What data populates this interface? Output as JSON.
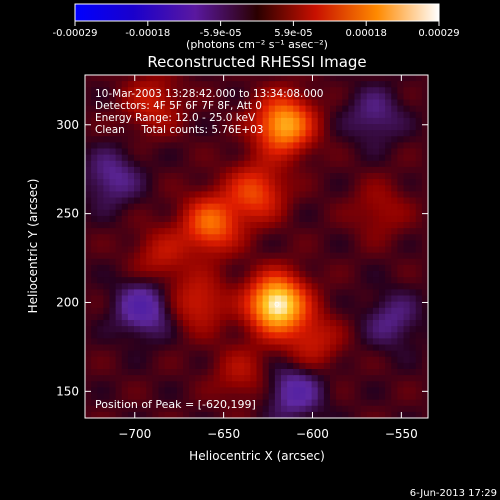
{
  "chart_data": {
    "type": "heatmap",
    "title": "Reconstructed RHESSI Image",
    "xlabel": "Heliocentric X (arcsec)",
    "ylabel": "Heliocentric Y (arcsec)",
    "xlim": [
      -728,
      -535
    ],
    "ylim": [
      135,
      328
    ],
    "x_ticks": [
      -700,
      -650,
      -600,
      -550
    ],
    "y_ticks": [
      150,
      200,
      250,
      300
    ],
    "colorbar": {
      "ticks": [
        "-0.00029",
        "-0.00018",
        "-5.9e-05",
        "5.9e-05",
        "0.00018",
        "0.00029"
      ],
      "unit_label": "(photons cm⁻² s⁻¹ asec⁻²)",
      "range": [
        -0.00029,
        0.00029
      ]
    },
    "annotations": [
      "10-Mar-2003 13:28:42.000 to 13:34:08.000",
      "Detectors: 4F 5F 6F 7F 8F, Att 0",
      "Energy Range: 12.0 - 25.0 keV",
      "Clean     Total counts: 5.76E+03"
    ],
    "peak_label": "Position of Peak = [-620,199]",
    "peak": {
      "x": -620,
      "y": 199
    },
    "sources": [
      {
        "x": -620,
        "y": 199,
        "value": 0.00029
      },
      {
        "x": -616,
        "y": 300,
        "value": 0.00022
      },
      {
        "x": -657,
        "y": 244,
        "value": 0.00016
      },
      {
        "x": -632,
        "y": 262,
        "value": 0.00013
      },
      {
        "x": -664,
        "y": 200,
        "value": 9e-05
      },
      {
        "x": -690,
        "y": 312,
        "value": 8e-05
      },
      {
        "x": -600,
        "y": 178,
        "value": 8e-05
      },
      {
        "x": -685,
        "y": 226,
        "value": 7e-05
      },
      {
        "x": -640,
        "y": 160,
        "value": 6e-05
      },
      {
        "x": -562,
        "y": 252,
        "value": 5e-05
      },
      {
        "x": -695,
        "y": 197,
        "value": -0.0001
      },
      {
        "x": -610,
        "y": 150,
        "value": -9e-05
      },
      {
        "x": -713,
        "y": 270,
        "value": -7e-05
      },
      {
        "x": -565,
        "y": 305,
        "value": -6e-05
      },
      {
        "x": -555,
        "y": 190,
        "value": -6e-05
      }
    ]
  },
  "footer_date": "6-Jun-2013 17:29"
}
